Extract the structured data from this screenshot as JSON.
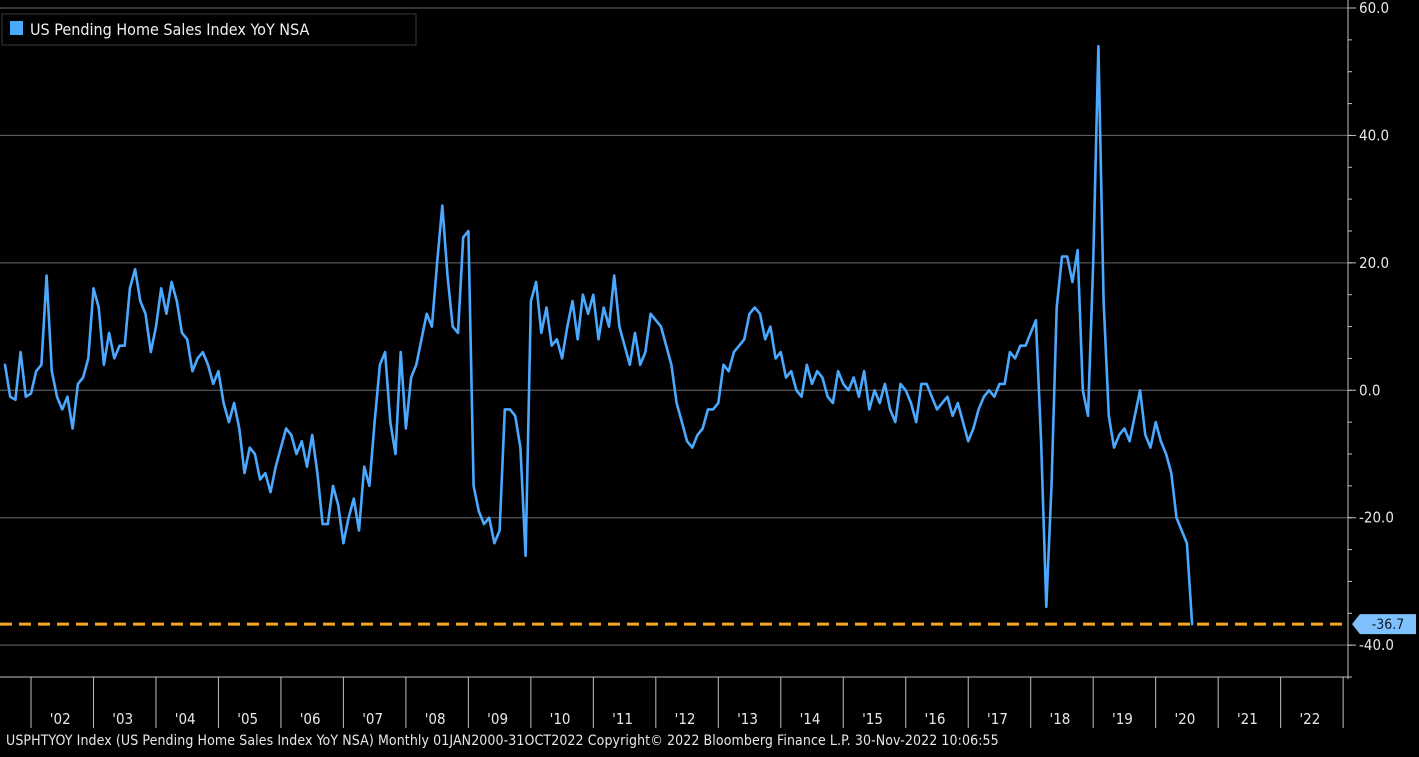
{
  "colors": {
    "background": "#000000",
    "series": "#4aa8ff",
    "reference_line": "#f5a623",
    "grid": "#6a6a6a",
    "axis": "#bfbfbf",
    "current_label_bg": "#7fc0ff"
  },
  "footer": {
    "text": "USPHTYOY Index (US Pending Home Sales Index YoY NSA)  Monthly 01JAN2000-31OCT2022  Copyright© 2022 Bloomberg Finance L.P.  30-Nov-2022 10:06:55"
  },
  "chart_data": {
    "type": "line",
    "title": "",
    "legend": {
      "placement": "top-left",
      "entries": [
        "US Pending Home Sales Index YoY NSA"
      ]
    },
    "y_axis": {
      "position": "right",
      "ylim": [
        -45,
        60
      ],
      "ticks": [
        60,
        40,
        20,
        0,
        -20,
        -40
      ],
      "tick_labels": [
        "60.0",
        "40.0",
        "20.0",
        "0.0",
        "-20.0",
        "-40.0"
      ]
    },
    "x_axis": {
      "xlim": [
        2001.6,
        2022.95
      ],
      "tick_labels": [
        "'02",
        "'03",
        "'04",
        "'05",
        "'06",
        "'07",
        "'08",
        "'09",
        "'10",
        "'11",
        "'12",
        "'13",
        "'14",
        "'15",
        "'16",
        "'17",
        "'18",
        "'19",
        "'20",
        "'21",
        "'22"
      ],
      "tick_positions": [
        2002,
        2003,
        2004,
        2005,
        2006,
        2007,
        2008,
        2009,
        2010,
        2011,
        2012,
        2013,
        2014,
        2015,
        2016,
        2017,
        2018,
        2019,
        2020,
        2021,
        2022
      ]
    },
    "grid": true,
    "reference_line": {
      "value": -36.7,
      "style": "dashed"
    },
    "current_value": {
      "value": -36.7,
      "label": "-36.7"
    },
    "series": [
      {
        "name": "US Pending Home Sales Index YoY NSA",
        "start": "2001-08",
        "frequency": "monthly",
        "values": [
          4,
          -1,
          -1.5,
          6,
          -1,
          -0.5,
          3,
          4,
          18,
          3,
          -1,
          -3,
          -1,
          -6,
          1,
          2,
          5,
          16,
          13,
          4,
          9,
          5,
          7,
          7,
          16,
          19,
          14,
          12,
          6,
          10,
          16,
          12,
          17,
          14,
          9,
          8,
          3,
          5,
          6,
          4,
          1,
          3,
          -2,
          -5,
          -2,
          -6,
          -13,
          -9,
          -10,
          -14,
          -13,
          -16,
          -12,
          -9,
          -6,
          -7,
          -10,
          -8,
          -12,
          -7,
          -13,
          -21,
          -21,
          -15,
          -18,
          -24,
          -20,
          -17,
          -22,
          -12,
          -15,
          -5,
          4,
          6,
          -5,
          -10,
          6,
          -6,
          2,
          4,
          8,
          12,
          10,
          20,
          29,
          18,
          10,
          9,
          24,
          25,
          -15,
          -19,
          -21,
          -20,
          -24,
          -22,
          -3,
          -3,
          -4,
          -9,
          -26,
          14,
          17,
          9,
          13,
          7,
          8,
          5,
          10,
          14,
          8,
          15,
          12,
          15,
          8,
          13,
          10,
          18,
          10,
          7,
          4,
          9,
          4,
          6,
          12,
          11,
          10,
          7,
          4,
          -2,
          -5,
          -8,
          -9,
          -7,
          -6,
          -3,
          -3,
          -2,
          4,
          3,
          6,
          7,
          8,
          12,
          13,
          12,
          8,
          10,
          5,
          6,
          2,
          3,
          0,
          -1,
          4,
          1,
          3,
          2,
          -1,
          -2,
          3,
          1,
          0,
          2,
          -1,
          3,
          -3,
          0,
          -2,
          1,
          -3,
          -5,
          1,
          0,
          -2,
          -5,
          1,
          1,
          -1,
          -3,
          -2,
          -1,
          -4,
          -2,
          -5,
          -8,
          -6,
          -3,
          -1,
          0,
          -1,
          1,
          1,
          6,
          5,
          7,
          7,
          9,
          11,
          -8,
          -34,
          -15,
          13,
          21,
          21,
          17,
          22,
          0,
          -4,
          20,
          54,
          14,
          -4,
          -9,
          -7,
          -6,
          -8,
          -4,
          0,
          -7,
          -9,
          -5,
          -8,
          -10,
          -13,
          -20,
          -22,
          -24,
          -36.7
        ]
      }
    ]
  }
}
